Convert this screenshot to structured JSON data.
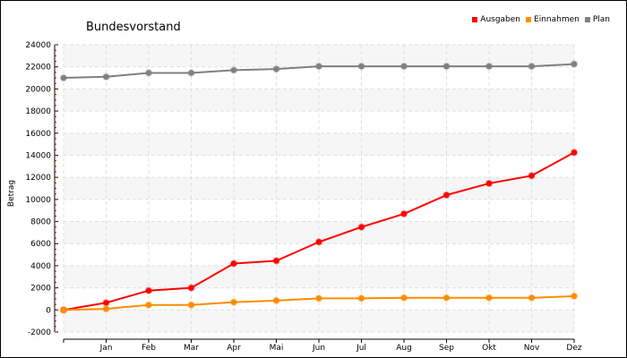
{
  "chart_data": {
    "type": "line",
    "title": "Bundesvorstand",
    "ylabel": "Betrag",
    "xlabel": "",
    "categories": [
      "",
      "Jan",
      "Feb",
      "Mar",
      "Apr",
      "Mai",
      "Jun",
      "Jul",
      "Aug",
      "Sep",
      "Okt",
      "Nov",
      "Dez"
    ],
    "ylim": [
      -2000,
      24000
    ],
    "yticks": [
      -2000,
      0,
      2000,
      4000,
      6000,
      8000,
      10000,
      12000,
      14000,
      16000,
      18000,
      20000,
      22000,
      24000
    ],
    "grid": true,
    "legend_position": "top-right",
    "series": [
      {
        "name": "Ausgaben",
        "color": "#ff0000",
        "values": [
          0,
          650,
          1750,
          2000,
          4200,
          4450,
          6150,
          7500,
          8700,
          10400,
          11450,
          12150,
          14250
        ]
      },
      {
        "name": "Einnahmen",
        "color": "#ff8c00",
        "values": [
          0,
          100,
          450,
          450,
          700,
          850,
          1050,
          1050,
          1100,
          1100,
          1100,
          1100,
          1250
        ]
      },
      {
        "name": "Plan",
        "color": "#808080",
        "values": [
          21000,
          21100,
          21450,
          21450,
          21700,
          21800,
          22050,
          22050,
          22050,
          22050,
          22050,
          22050,
          22250
        ]
      }
    ]
  }
}
